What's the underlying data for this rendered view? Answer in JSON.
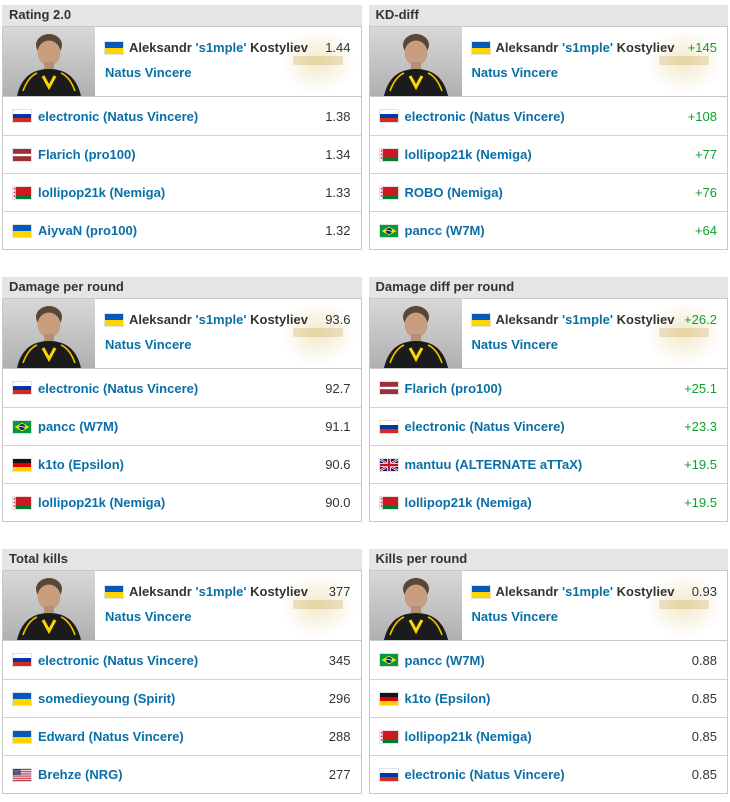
{
  "colors": {
    "link_blue": "#0a6fa6",
    "positive_green": "#0aa32f",
    "header_bg": "#e5e5e5",
    "border_gray": "#c8c8c8"
  },
  "featured_player": {
    "first_name": "Aleksandr",
    "nickname": "s1mple",
    "last_name": "Kostyliev",
    "team": "Natus Vincere",
    "flag": "ua"
  },
  "panels": [
    {
      "title": "Rating 2.0",
      "featured_value": "1.44",
      "rows": [
        {
          "flag": "ru",
          "name": "electronic",
          "team": "Natus Vincere",
          "value": "1.38"
        },
        {
          "flag": "lv",
          "name": "Flarich",
          "team": "pro100",
          "value": "1.34"
        },
        {
          "flag": "by",
          "name": "lollipop21k",
          "team": "Nemiga",
          "value": "1.33"
        },
        {
          "flag": "ua",
          "name": "AiyvaN",
          "team": "pro100",
          "value": "1.32"
        }
      ]
    },
    {
      "title": "KD-diff",
      "featured_value": "+145",
      "rows": [
        {
          "flag": "ru",
          "name": "electronic",
          "team": "Natus Vincere",
          "value": "+108"
        },
        {
          "flag": "by",
          "name": "lollipop21k",
          "team": "Nemiga",
          "value": "+77"
        },
        {
          "flag": "by",
          "name": "ROBO",
          "team": "Nemiga",
          "value": "+76"
        },
        {
          "flag": "br",
          "name": "pancc",
          "team": "W7M",
          "value": "+64"
        }
      ]
    },
    {
      "title": "Damage per round",
      "featured_value": "93.6",
      "rows": [
        {
          "flag": "ru",
          "name": "electronic",
          "team": "Natus Vincere",
          "value": "92.7"
        },
        {
          "flag": "br",
          "name": "pancc",
          "team": "W7M",
          "value": "91.1"
        },
        {
          "flag": "de",
          "name": "k1to",
          "team": "Epsilon",
          "value": "90.6"
        },
        {
          "flag": "by",
          "name": "lollipop21k",
          "team": "Nemiga",
          "value": "90.0"
        }
      ]
    },
    {
      "title": "Damage diff per round",
      "featured_value": "+26.2",
      "rows": [
        {
          "flag": "lv",
          "name": "Flarich",
          "team": "pro100",
          "value": "+25.1"
        },
        {
          "flag": "ru",
          "name": "electronic",
          "team": "Natus Vincere",
          "value": "+23.3"
        },
        {
          "flag": "gb",
          "name": "mantuu",
          "team": "ALTERNATE aTTaX",
          "value": "+19.5"
        },
        {
          "flag": "by",
          "name": "lollipop21k",
          "team": "Nemiga",
          "value": "+19.5"
        }
      ]
    },
    {
      "title": "Total kills",
      "featured_value": "377",
      "rows": [
        {
          "flag": "ru",
          "name": "electronic",
          "team": "Natus Vincere",
          "value": "345"
        },
        {
          "flag": "ua",
          "name": "somedieyoung",
          "team": "Spirit",
          "value": "296"
        },
        {
          "flag": "ua",
          "name": "Edward",
          "team": "Natus Vincere",
          "value": "288"
        },
        {
          "flag": "us",
          "name": "Brehze",
          "team": "NRG",
          "value": "277"
        }
      ]
    },
    {
      "title": "Kills per round",
      "featured_value": "0.93",
      "rows": [
        {
          "flag": "br",
          "name": "pancc",
          "team": "W7M",
          "value": "0.88"
        },
        {
          "flag": "de",
          "name": "k1to",
          "team": "Epsilon",
          "value": "0.85"
        },
        {
          "flag": "by",
          "name": "lollipop21k",
          "team": "Nemiga",
          "value": "0.85"
        },
        {
          "flag": "ru",
          "name": "electronic",
          "team": "Natus Vincere",
          "value": "0.85"
        }
      ]
    }
  ]
}
